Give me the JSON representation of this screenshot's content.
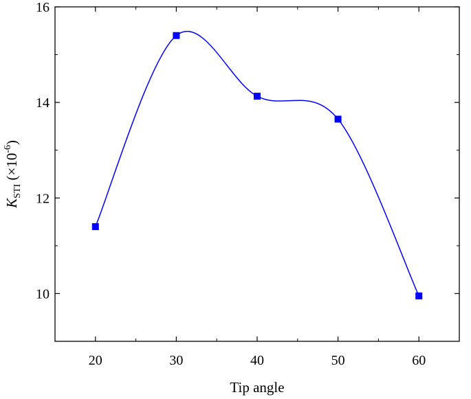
{
  "chart_data": {
    "type": "line",
    "title": "",
    "xlabel": "Tip angle",
    "ylabel": {
      "symbol": "K",
      "subscript": "STI",
      "unit_prefix": " (×10",
      "unit_exponent": "-6",
      "unit_suffix": ")"
    },
    "x": [
      20,
      30,
      40,
      50,
      60
    ],
    "series": [
      {
        "name": "",
        "values": [
          11.4,
          15.4,
          14.13,
          13.65,
          9.95
        ],
        "color": "#0000ff",
        "marker": "square",
        "smoothed": true
      }
    ],
    "xlim": [
      15,
      65
    ],
    "ylim": [
      9,
      16
    ],
    "xticks": [
      20,
      30,
      40,
      50,
      60
    ],
    "yticks": [
      10,
      12,
      14,
      16
    ],
    "grid": false,
    "legend": "none"
  }
}
